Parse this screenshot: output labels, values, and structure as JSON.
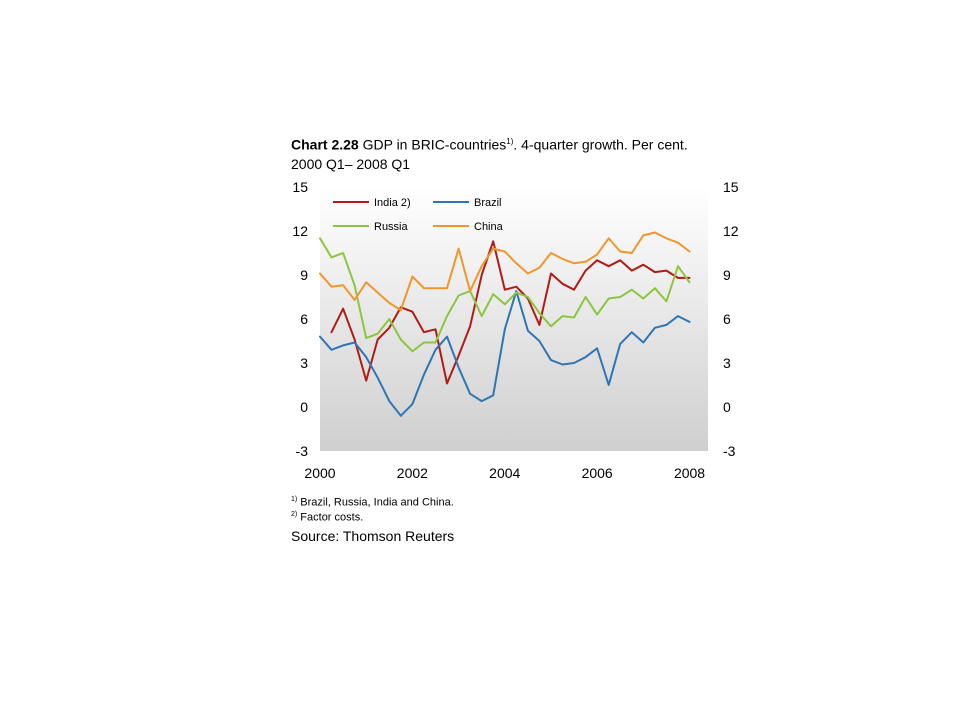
{
  "header": {
    "chart_number": "Chart 2.28",
    "title_text": "GDP in BRIC-countries",
    "title_sup": "1)",
    "title_rest": ". 4-quarter growth. Per cent.",
    "subtitle": "2000 Q1– 2008 Q1"
  },
  "footnotes": [
    {
      "mark": "1)",
      "text": "Brazil, Russia, India and China."
    },
    {
      "mark": "2)",
      "text": "Factor costs."
    }
  ],
  "source": "Source: Thomson Reuters",
  "chart_data": {
    "type": "line",
    "title": "GDP in BRIC-countries. 4-quarter growth. Per cent.",
    "subtitle": "2000 Q1– 2008 Q1",
    "xlabel": "",
    "ylabel": "",
    "xlim": [
      2000,
      2008.4
    ],
    "ylim": [
      -3,
      15
    ],
    "x_ticks": [
      2000,
      2002,
      2004,
      2006,
      2008
    ],
    "y_ticks": [
      -3,
      0,
      3,
      6,
      9,
      12,
      15
    ],
    "y_axis_right": true,
    "grid": false,
    "background": "gradient",
    "legend_position": "top-left",
    "x": [
      2000.0,
      2000.25,
      2000.5,
      2000.75,
      2001.0,
      2001.25,
      2001.5,
      2001.75,
      2002.0,
      2002.25,
      2002.5,
      2002.75,
      2003.0,
      2003.25,
      2003.5,
      2003.75,
      2004.0,
      2004.25,
      2004.5,
      2004.75,
      2005.0,
      2005.25,
      2005.5,
      2005.75,
      2006.0,
      2006.25,
      2006.5,
      2006.75,
      2007.0,
      2007.25,
      2007.5,
      2007.75,
      2008.0,
      2008.25
    ],
    "series": [
      {
        "name": "India 2)",
        "color": "#b01c14",
        "values": [
          null,
          5.1,
          6.7,
          4.6,
          1.8,
          4.6,
          5.4,
          6.8,
          6.5,
          5.1,
          5.3,
          1.6,
          3.5,
          5.5,
          9.0,
          11.3,
          8.0,
          8.2,
          7.4,
          5.6,
          9.1,
          8.4,
          8.0,
          9.3,
          10.0,
          9.6,
          10.0,
          9.3,
          9.7,
          9.2,
          9.3,
          8.8,
          8.8,
          null
        ]
      },
      {
        "name": "Brazil",
        "color": "#2e75b6",
        "values": [
          4.8,
          3.9,
          4.2,
          4.4,
          3.4,
          2.0,
          0.4,
          -0.6,
          0.2,
          2.2,
          3.9,
          4.8,
          2.7,
          0.9,
          0.4,
          0.8,
          5.3,
          7.9,
          5.2,
          4.5,
          3.2,
          2.9,
          3.0,
          3.4,
          4.0,
          1.5,
          4.3,
          5.1,
          4.4,
          5.4,
          5.6,
          6.2,
          5.8,
          null
        ]
      },
      {
        "name": "Russia",
        "color": "#8cc63f",
        "values": [
          11.5,
          10.2,
          10.5,
          8.3,
          4.7,
          5.0,
          6.0,
          4.6,
          3.8,
          4.4,
          4.4,
          6.2,
          7.6,
          7.9,
          6.2,
          7.7,
          7.0,
          7.8,
          7.5,
          6.4,
          5.5,
          6.2,
          6.1,
          7.5,
          6.3,
          7.4,
          7.5,
          8.0,
          7.4,
          8.1,
          7.2,
          9.6,
          8.5,
          null
        ]
      },
      {
        "name": "China",
        "color": "#f0962c",
        "values": [
          9.1,
          8.2,
          8.3,
          7.3,
          8.5,
          7.8,
          7.1,
          6.6,
          8.9,
          8.1,
          8.1,
          8.1,
          10.8,
          7.9,
          9.6,
          10.8,
          10.6,
          9.8,
          9.1,
          9.5,
          10.5,
          10.1,
          9.8,
          9.9,
          10.4,
          11.5,
          10.6,
          10.5,
          11.7,
          11.9,
          11.5,
          11.2,
          10.6,
          null
        ]
      }
    ]
  }
}
